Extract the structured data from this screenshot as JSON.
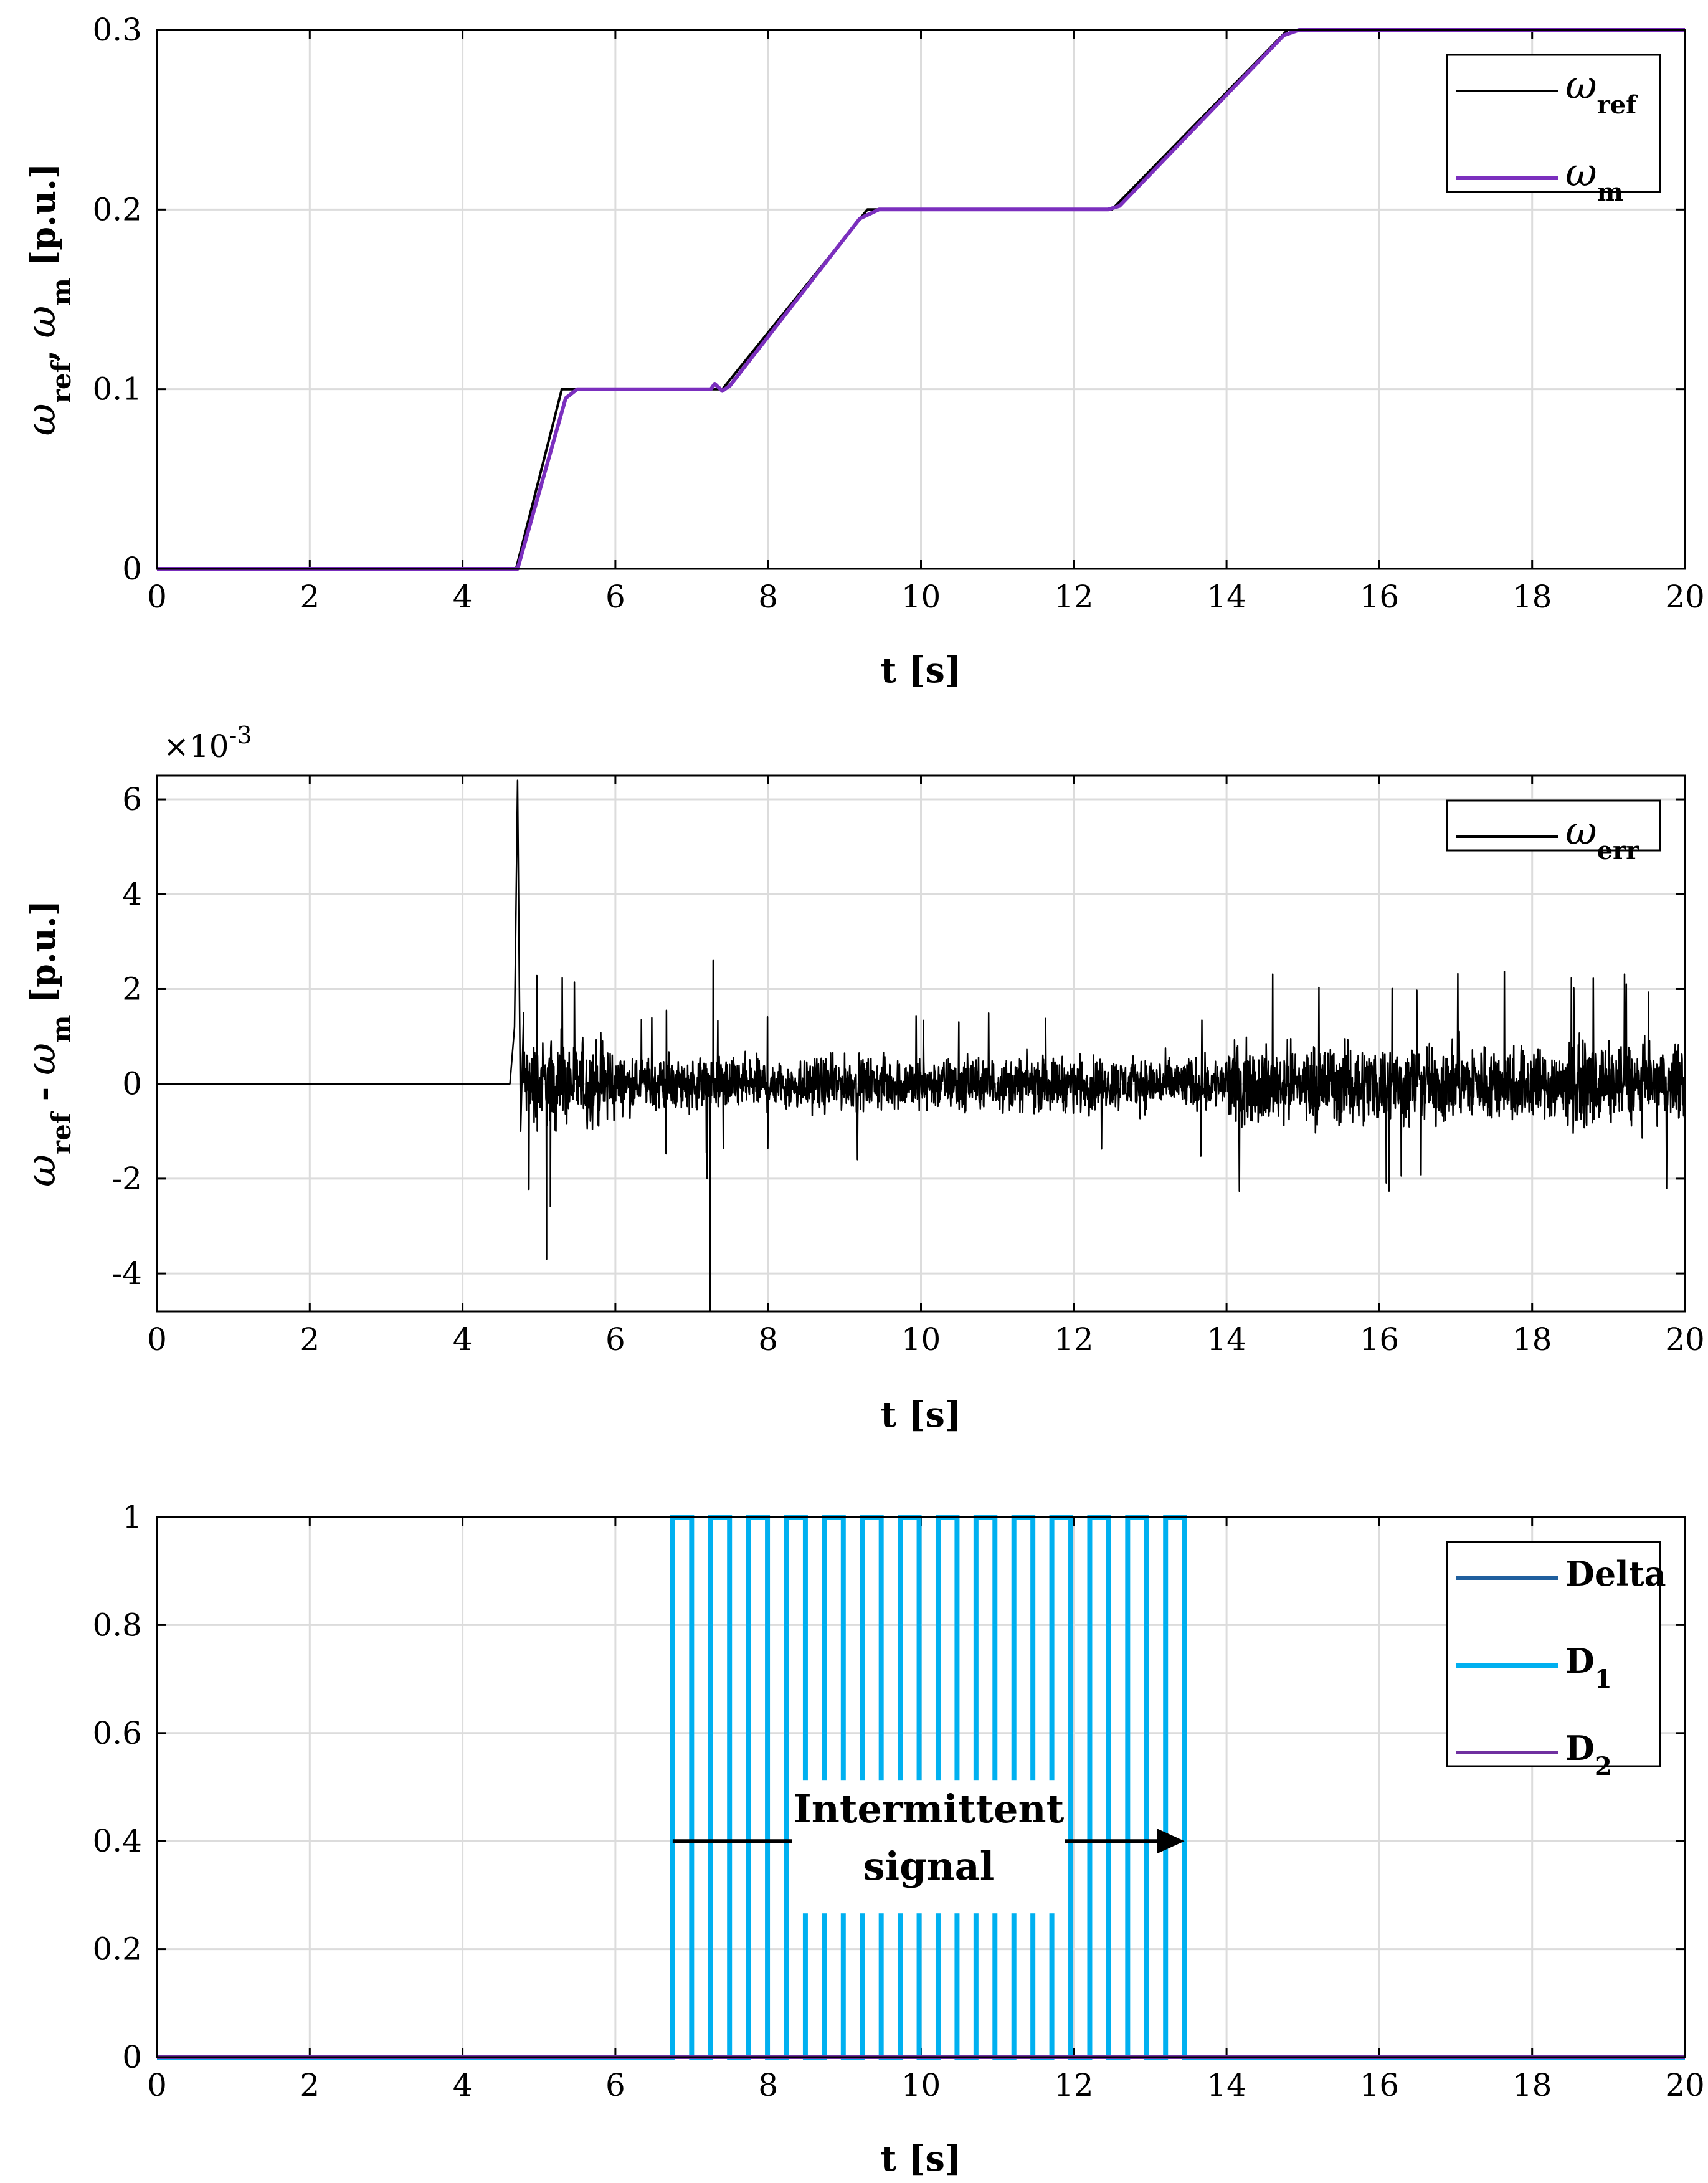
{
  "chart_data": [
    {
      "type": "line",
      "xlabel": "t [s]",
      "ylabel": {
        "base1": "ω",
        "sub1": "ref",
        "sep": ", ",
        "base2": "ω",
        "sub2": "m",
        "unit": " [p.u.]"
      },
      "xlim": [
        0,
        20
      ],
      "ylim": [
        0,
        0.3
      ],
      "xticks": [
        "0",
        "2",
        "4",
        "6",
        "8",
        "10",
        "12",
        "14",
        "16",
        "18",
        "20"
      ],
      "yticks": [
        "0",
        "0.1",
        "0.2",
        "0.3"
      ],
      "grid": true,
      "legend_position": "top-right",
      "series": [
        {
          "name": "ω",
          "sub": "ref",
          "color": "#000000",
          "x": [
            0,
            4.7,
            5.3,
            7.4,
            9.3,
            12.5,
            14.8,
            20
          ],
          "y": [
            0,
            0,
            0.1,
            0.1,
            0.2,
            0.2,
            0.3,
            0.3
          ]
        },
        {
          "name": "ω",
          "sub": "m",
          "color": "#7b2fbe",
          "x": [
            0,
            4.72,
            5.35,
            5.5,
            7.25,
            7.3,
            7.4,
            7.5,
            9.2,
            9.45,
            12.45,
            12.6,
            14.75,
            14.95,
            20
          ],
          "y": [
            0,
            0,
            0.095,
            0.1,
            0.1,
            0.103,
            0.099,
            0.102,
            0.195,
            0.2,
            0.2,
            0.202,
            0.297,
            0.3,
            0.3
          ]
        }
      ]
    },
    {
      "type": "line",
      "xlabel": "t [s]",
      "ylabel": {
        "base1": "ω",
        "sub1": "ref",
        "sep": " - ",
        "base2": "ω",
        "sub2": "m",
        "unit": " [p.u.]"
      },
      "exponent_label": {
        "prefix": "×10",
        "power": "-3"
      },
      "xlim": [
        0,
        20
      ],
      "ylim": [
        -4.8,
        6.5
      ],
      "xticks": [
        "0",
        "2",
        "4",
        "6",
        "8",
        "10",
        "12",
        "14",
        "16",
        "18",
        "20"
      ],
      "yticks": [
        "-4",
        "-2",
        "0",
        "2",
        "4",
        "6"
      ],
      "grid": true,
      "legend_position": "top-right",
      "series": [
        {
          "name": "ω",
          "sub": "err",
          "color": "#000000",
          "x": [
            0,
            4.62,
            4.68,
            4.72,
            4.76,
            4.8,
            5.1,
            5.15,
            7.2,
            7.24,
            7.28,
            7.3,
            20
          ],
          "y": [
            0,
            0,
            1.2,
            6.4,
            -1.0,
            1.5,
            -3.7,
            0.5,
            -2.0,
            -4.8,
            2.6,
            0,
            0
          ],
          "noise_band": [
            {
              "from": 4.8,
              "to": 6.0,
              "amp": 1.3
            },
            {
              "from": 6.0,
              "to": 14.0,
              "amp": 0.8
            },
            {
              "from": 14.0,
              "to": 20.0,
              "amp": 1.2
            }
          ]
        }
      ]
    },
    {
      "type": "line",
      "xlabel": "t [s]",
      "xlim": [
        0,
        20
      ],
      "ylim": [
        0,
        1
      ],
      "xticks": [
        "0",
        "2",
        "4",
        "6",
        "8",
        "10",
        "12",
        "14",
        "16",
        "18",
        "20"
      ],
      "yticks": [
        "0",
        "0.2",
        "0.4",
        "0.6",
        "0.8",
        "1"
      ],
      "grid": true,
      "legend_position": "top-right",
      "series": [
        {
          "name": "Delta",
          "sub": "",
          "color": "#1f5f9e",
          "x": [
            0,
            20
          ],
          "y": [
            0,
            0
          ]
        },
        {
          "name": "D",
          "sub": "1",
          "color": "#00b0f0",
          "pulse_start": 6.75,
          "pulse_end": 13.45,
          "pulse_count": 14,
          "high": 1,
          "low": 0
        },
        {
          "name": "D",
          "sub": "2",
          "color": "#7030a0",
          "x": [
            0,
            20
          ],
          "y": [
            0,
            0
          ]
        }
      ],
      "annotation": {
        "line1": "Intermittent",
        "line2": "signal",
        "arrow_from": 6.75,
        "arrow_to": 13.45,
        "arrow_y": 0.4
      }
    }
  ]
}
